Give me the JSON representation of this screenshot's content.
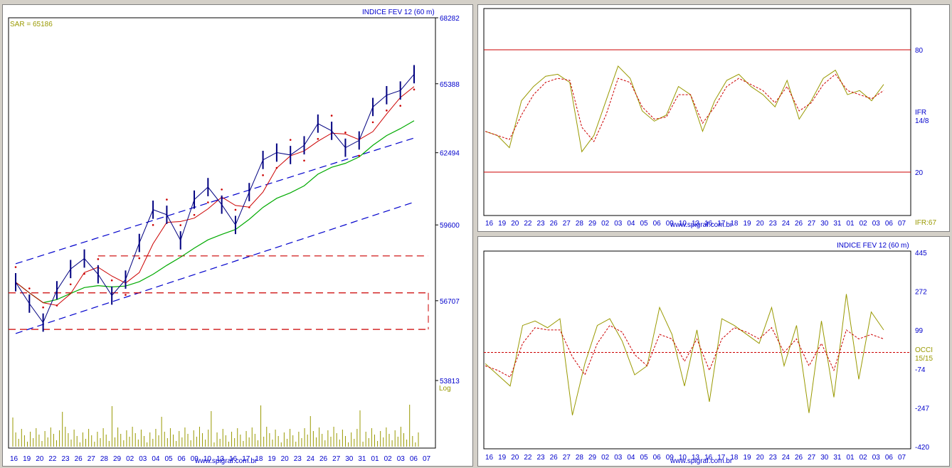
{
  "colors": {
    "axis_text": "#0000cc",
    "price_bars": "#000080",
    "sar_dots": "#cc0000",
    "ma_short": "#cc0000",
    "ma_long": "#00aa00",
    "channel_lines": "#0000cc",
    "support_lines": "#cc0000",
    "volume": "#999900",
    "oscillator": "#999900",
    "signal": "#cc0000",
    "level_lines": "#cc0000"
  },
  "x_date_labels": [
    "16",
    "19",
    "20",
    "22",
    "23",
    "26",
    "27",
    "28",
    "29",
    "02",
    "03",
    "04",
    "05",
    "06",
    "09",
    "10",
    "13",
    "16",
    "17",
    "18",
    "19",
    "20",
    "23",
    "24",
    "26",
    "27",
    "30",
    "31",
    "01",
    "02",
    "03",
    "06",
    "07"
  ],
  "watermark": "www.spigraf.com.br",
  "main_panel": {
    "title": "INDICE FEV 12 (60 m)",
    "sar_label": "SAR = 65186",
    "scale_label": "Log",
    "chart_data": {
      "type": "line",
      "title": "INDICE FEV 12 (60 m)",
      "y_ticks": [
        "68282",
        "65388",
        "62494",
        "59600",
        "56707",
        "53813"
      ],
      "ylim": [
        53813,
        68282
      ],
      "y_scale": "log",
      "grid": false,
      "series": [
        {
          "name": "",
          "values": [
            57400,
            56600,
            55900,
            57100,
            57900,
            58300,
            57700,
            56900,
            57500,
            58900,
            60200,
            60000,
            59000,
            60600,
            61100,
            60400,
            59600,
            60900,
            62200,
            62500,
            62400,
            62800,
            63700,
            63400,
            62700,
            63000,
            64400,
            64900,
            65100,
            65800
          ]
        }
      ],
      "sar_value": 65186,
      "channel_upper": [
        58100,
        63100
      ],
      "channel_lower": [
        55500,
        60500
      ],
      "support_levels": [
        58400,
        57000,
        55650
      ]
    }
  },
  "rsi_panel": {
    "indicator_label": "IFR",
    "params": "14/8",
    "value_label": "IFR:67",
    "chart_data": {
      "type": "line",
      "y_ticks": [
        "80",
        "20"
      ],
      "ylim": [
        0,
        100
      ],
      "levels": [
        80,
        20
      ],
      "series": [
        {
          "name": "IFR",
          "values": [
            40,
            38,
            32,
            55,
            62,
            67,
            68,
            64,
            30,
            38,
            55,
            72,
            66,
            50,
            45,
            48,
            62,
            58,
            40,
            55,
            65,
            68,
            62,
            58,
            52,
            65,
            46,
            55,
            66,
            70,
            58,
            60,
            55,
            63
          ]
        },
        {
          "name": "",
          "values": [
            40,
            38,
            36,
            48,
            58,
            64,
            66,
            65,
            42,
            35,
            48,
            66,
            64,
            52,
            46,
            47,
            58,
            58,
            44,
            52,
            62,
            66,
            63,
            60,
            54,
            62,
            50,
            54,
            63,
            68,
            60,
            58,
            56,
            60
          ]
        }
      ]
    }
  },
  "cci_panel": {
    "title": "INDICE FEV 12 (60 m)",
    "indicator_label": "OCCI",
    "params": "15/15",
    "chart_data": {
      "type": "line",
      "y_ticks": [
        "445",
        "272",
        "99",
        "-74",
        "-247",
        "-420"
      ],
      "ylim": [
        -420,
        445
      ],
      "zero_line": 0,
      "series": [
        {
          "name": "OCCI",
          "values": [
            -50,
            -100,
            -150,
            120,
            140,
            110,
            150,
            -280,
            -50,
            120,
            150,
            50,
            -100,
            -60,
            200,
            80,
            -150,
            100,
            -220,
            150,
            120,
            80,
            40,
            200,
            -60,
            120,
            -270,
            140,
            -200,
            260,
            -120,
            180,
            100
          ]
        },
        {
          "name": "",
          "values": [
            -60,
            -80,
            -110,
            40,
            110,
            100,
            100,
            -20,
            -100,
            40,
            120,
            90,
            -10,
            -60,
            80,
            60,
            -40,
            60,
            -80,
            60,
            110,
            90,
            60,
            110,
            0,
            60,
            -60,
            40,
            -80,
            100,
            60,
            80,
            60
          ]
        }
      ]
    }
  }
}
